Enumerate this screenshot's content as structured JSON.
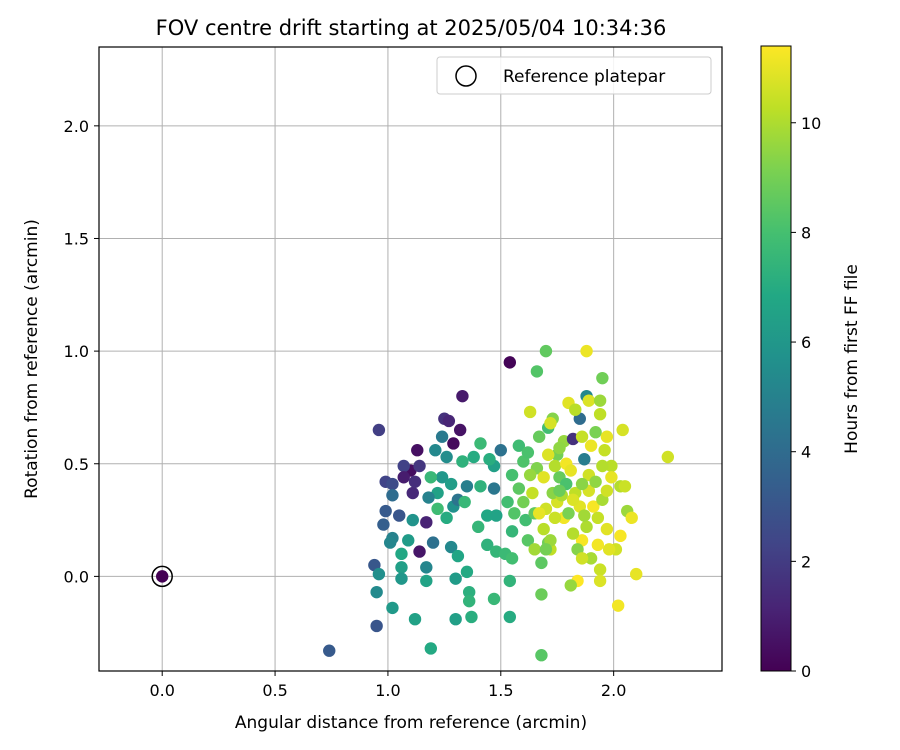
{
  "chart_data": {
    "type": "scatter",
    "title": "FOV centre drift starting at 2025/05/04 10:34:36",
    "xlabel": "Angular distance from reference (arcmin)",
    "ylabel": "Rotation from reference (arcmin)",
    "xlim": [
      -0.28,
      2.48
    ],
    "ylim": [
      -0.42,
      2.35
    ],
    "x_ticks": [
      0.0,
      0.5,
      1.0,
      1.5,
      2.0
    ],
    "y_ticks": [
      0.0,
      0.5,
      1.0,
      1.5,
      2.0
    ],
    "x_tick_labels": [
      "0.0",
      "0.5",
      "1.0",
      "1.5",
      "2.0"
    ],
    "y_tick_labels": [
      "0.0",
      "0.5",
      "1.0",
      "1.5",
      "2.0"
    ],
    "grid": true,
    "legend": {
      "position": "top-right",
      "entries": [
        "Reference platepar"
      ]
    },
    "reference_point": {
      "x": 0.0,
      "y": 0.0,
      "value": 0.0
    },
    "colorbar": {
      "label": "Hours from first FF file",
      "min": 0,
      "max": 11.4,
      "ticks": [
        0,
        2,
        4,
        6,
        8,
        10
      ],
      "tick_labels": [
        "0",
        "2",
        "4",
        "6",
        "8",
        "10"
      ],
      "colormap": "viridis"
    },
    "points": [
      [
        0.0,
        0.0,
        0.0
      ],
      [
        1.54,
        0.95,
        0.1
      ],
      [
        1.33,
        0.8,
        0.8
      ],
      [
        1.25,
        0.7,
        1.6
      ],
      [
        1.27,
        0.69,
        1.2
      ],
      [
        0.96,
        0.65,
        2.1
      ],
      [
        1.32,
        0.65,
        0.6
      ],
      [
        1.29,
        0.59,
        0.3
      ],
      [
        1.13,
        0.56,
        0.5
      ],
      [
        1.1,
        0.47,
        0.4
      ],
      [
        1.14,
        0.49,
        1.8
      ],
      [
        1.07,
        0.49,
        2.2
      ],
      [
        0.99,
        0.42,
        2.3
      ],
      [
        1.07,
        0.44,
        0.9
      ],
      [
        1.11,
        0.37,
        1.3
      ],
      [
        1.17,
        0.24,
        1.1
      ],
      [
        1.14,
        0.11,
        0.7
      ],
      [
        1.12,
        0.42,
        1.5
      ],
      [
        1.02,
        0.41,
        2.6
      ],
      [
        1.05,
        0.27,
        3.0
      ],
      [
        0.99,
        0.29,
        3.2
      ],
      [
        0.98,
        0.23,
        3.4
      ],
      [
        1.02,
        0.36,
        4.0
      ],
      [
        0.94,
        0.05,
        3.1
      ],
      [
        0.95,
        -0.22,
        3.0
      ],
      [
        0.74,
        -0.33,
        3.2
      ],
      [
        1.02,
        0.17,
        5.0
      ],
      [
        1.01,
        0.15,
        5.2
      ],
      [
        0.95,
        -0.07,
        5.4
      ],
      [
        0.96,
        0.01,
        5.6
      ],
      [
        1.02,
        -0.14,
        6.1
      ],
      [
        1.06,
        0.04,
        6.4
      ],
      [
        1.06,
        -0.01,
        6.0
      ],
      [
        1.06,
        0.1,
        6.8
      ],
      [
        1.09,
        0.16,
        6.2
      ],
      [
        1.11,
        0.25,
        5.8
      ],
      [
        1.12,
        -0.19,
        6.5
      ],
      [
        1.17,
        0.04,
        5.2
      ],
      [
        1.17,
        -0.02,
        6.6
      ],
      [
        1.19,
        -0.32,
        6.9
      ],
      [
        1.2,
        0.15,
        4.2
      ],
      [
        1.21,
        0.56,
        5.3
      ],
      [
        1.24,
        0.62,
        4.6
      ],
      [
        1.26,
        0.53,
        5.5
      ],
      [
        1.24,
        0.44,
        6.0
      ],
      [
        1.28,
        0.41,
        6.3
      ],
      [
        1.22,
        0.37,
        6.5
      ],
      [
        1.18,
        0.35,
        5.0
      ],
      [
        1.29,
        0.31,
        5.7
      ],
      [
        1.31,
        0.34,
        4.4
      ],
      [
        1.35,
        0.4,
        4.9
      ],
      [
        1.28,
        0.13,
        5.3
      ],
      [
        1.31,
        0.09,
        6.7
      ],
      [
        1.3,
        -0.01,
        6.2
      ],
      [
        1.3,
        -0.19,
        6.4
      ],
      [
        1.36,
        -0.07,
        7.2
      ],
      [
        1.36,
        -0.11,
        7.4
      ],
      [
        1.37,
        -0.18,
        7.1
      ],
      [
        1.35,
        0.02,
        6.9
      ],
      [
        1.4,
        0.22,
        7.5
      ],
      [
        1.41,
        0.4,
        7.3
      ],
      [
        1.44,
        0.27,
        6.8
      ],
      [
        1.47,
        0.39,
        4.5
      ],
      [
        1.48,
        0.27,
        6.6
      ],
      [
        1.5,
        0.56,
        4.3
      ],
      [
        1.47,
        0.49,
        6.4
      ],
      [
        1.45,
        0.52,
        7.1
      ],
      [
        1.41,
        0.59,
        7.7
      ],
      [
        1.38,
        0.53,
        7.0
      ],
      [
        1.33,
        0.51,
        7.3
      ],
      [
        1.34,
        0.33,
        7.6
      ],
      [
        1.26,
        0.26,
        7.0
      ],
      [
        1.22,
        0.3,
        7.8
      ],
      [
        1.19,
        0.44,
        7.6
      ],
      [
        1.44,
        0.14,
        7.3
      ],
      [
        1.48,
        0.11,
        7.5
      ],
      [
        1.47,
        -0.1,
        7.6
      ],
      [
        1.54,
        -0.18,
        7.0
      ],
      [
        1.54,
        -0.02,
        7.4
      ],
      [
        1.52,
        0.1,
        7.7
      ],
      [
        1.55,
        0.08,
        7.9
      ],
      [
        1.55,
        0.2,
        7.5
      ],
      [
        1.53,
        0.33,
        7.9
      ],
      [
        1.55,
        0.45,
        8.0
      ],
      [
        1.58,
        0.58,
        7.8
      ],
      [
        1.6,
        0.51,
        8.2
      ],
      [
        1.61,
        0.25,
        7.9
      ],
      [
        1.62,
        0.16,
        8.4
      ],
      [
        1.65,
        0.28,
        8.6
      ],
      [
        1.66,
        0.91,
        8.3
      ],
      [
        1.68,
        0.06,
        8.5
      ],
      [
        1.68,
        -0.08,
        8.8
      ],
      [
        1.68,
        -0.35,
        8.4
      ],
      [
        1.7,
        1.0,
        8.6
      ],
      [
        1.71,
        0.66,
        7.9
      ],
      [
        1.71,
        0.15,
        8.9
      ],
      [
        1.72,
        0.12,
        10.3
      ],
      [
        1.73,
        0.7,
        9.3
      ],
      [
        1.75,
        0.54,
        9.0
      ],
      [
        1.76,
        0.44,
        8.7
      ],
      [
        1.78,
        0.6,
        9.6
      ],
      [
        1.79,
        0.41,
        8.1
      ],
      [
        1.82,
        0.61,
        1.6
      ],
      [
        1.85,
        0.7,
        4.0
      ],
      [
        1.87,
        0.52,
        4.8
      ],
      [
        1.88,
        0.8,
        5.3
      ],
      [
        1.89,
        0.78,
        10.8
      ],
      [
        1.88,
        1.0,
        11.1
      ],
      [
        1.92,
        0.64,
        9.1
      ],
      [
        1.94,
        0.72,
        10.3
      ],
      [
        1.94,
        0.78,
        9.7
      ],
      [
        1.95,
        0.88,
        8.9
      ],
      [
        1.96,
        0.56,
        10.4
      ],
      [
        1.97,
        0.62,
        11.0
      ],
      [
        1.99,
        0.49,
        10.2
      ],
      [
        2.04,
        0.65,
        10.7
      ],
      [
        2.03,
        0.4,
        10.1
      ],
      [
        2.05,
        0.4,
        10.5
      ],
      [
        2.06,
        0.29,
        9.7
      ],
      [
        2.08,
        0.26,
        11.1
      ],
      [
        2.03,
        0.18,
        11.3
      ],
      [
        2.01,
        0.12,
        10.6
      ],
      [
        1.98,
        0.12,
        10.9
      ],
      [
        2.02,
        -0.13,
        11.2
      ],
      [
        2.1,
        0.01,
        11.0
      ],
      [
        2.24,
        0.53,
        10.6
      ],
      [
        1.94,
        0.03,
        10.5
      ],
      [
        1.94,
        -0.02,
        10.8
      ],
      [
        1.9,
        0.08,
        9.9
      ],
      [
        1.88,
        0.22,
        10.0
      ],
      [
        1.86,
        0.16,
        11.3
      ],
      [
        1.84,
        -0.02,
        11.4
      ],
      [
        1.81,
        -0.04,
        9.6
      ],
      [
        1.78,
        0.26,
        11.2
      ],
      [
        1.75,
        0.33,
        10.7
      ],
      [
        1.73,
        0.37,
        9.4
      ],
      [
        1.7,
        0.3,
        10.6
      ],
      [
        1.69,
        0.21,
        10.2
      ],
      [
        1.67,
        0.28,
        11.0
      ],
      [
        1.65,
        0.12,
        9.8
      ],
      [
        1.64,
        0.37,
        10.4
      ],
      [
        1.63,
        0.73,
        10.6
      ],
      [
        1.66,
        0.48,
        9.2
      ],
      [
        1.69,
        0.44,
        10.9
      ],
      [
        1.71,
        0.54,
        10.8
      ],
      [
        1.74,
        0.49,
        10.1
      ],
      [
        1.76,
        0.57,
        9.5
      ],
      [
        1.79,
        0.5,
        11.2
      ],
      [
        1.81,
        0.47,
        11.0
      ],
      [
        1.83,
        0.37,
        10.3
      ],
      [
        1.85,
        0.31,
        10.9
      ],
      [
        1.87,
        0.27,
        9.8
      ],
      [
        1.89,
        0.38,
        10.7
      ],
      [
        1.91,
        0.31,
        11.3
      ],
      [
        1.93,
        0.26,
        10.4
      ],
      [
        1.95,
        0.34,
        9.9
      ],
      [
        1.97,
        0.38,
        10.6
      ],
      [
        1.8,
        0.77,
        10.9
      ],
      [
        1.83,
        0.74,
        10.2
      ],
      [
        1.86,
        0.62,
        10.4
      ],
      [
        1.9,
        0.58,
        11.1
      ],
      [
        1.77,
        0.36,
        10.0
      ],
      [
        1.74,
        0.26,
        10.5
      ],
      [
        1.72,
        0.16,
        9.7
      ],
      [
        1.7,
        0.12,
        9.0
      ],
      [
        1.82,
        0.19,
        10.1
      ],
      [
        1.84,
        0.12,
        9.3
      ],
      [
        1.86,
        0.08,
        10.6
      ],
      [
        1.8,
        0.28,
        9.1
      ],
      [
        1.76,
        0.38,
        8.8
      ],
      [
        1.62,
        0.55,
        8.1
      ],
      [
        1.67,
        0.62,
        8.7
      ],
      [
        1.72,
        0.68,
        10.7
      ],
      [
        1.58,
        0.39,
        8.5
      ],
      [
        1.56,
        0.28,
        8.3
      ],
      [
        1.6,
        0.33,
        9.0
      ],
      [
        1.63,
        0.45,
        9.6
      ],
      [
        1.89,
        0.45,
        10.6
      ],
      [
        1.92,
        0.42,
        9.5
      ],
      [
        1.95,
        0.49,
        10.1
      ],
      [
        1.99,
        0.44,
        11.0
      ],
      [
        1.97,
        0.21,
        10.9
      ],
      [
        1.93,
        0.14,
        11.2
      ],
      [
        1.86,
        0.41,
        9.4
      ],
      [
        1.82,
        0.34,
        10.8
      ]
    ]
  }
}
